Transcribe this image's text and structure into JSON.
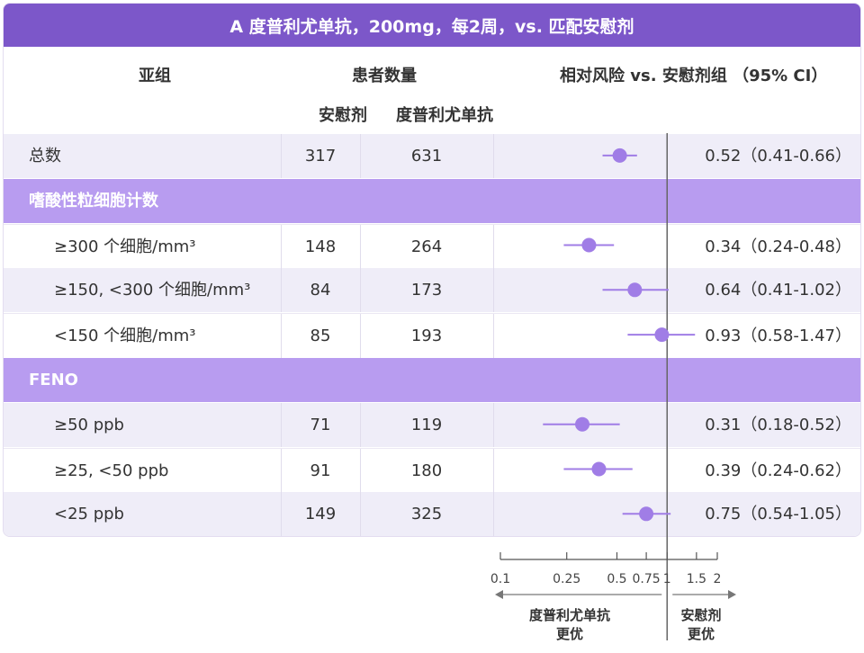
{
  "title": "A 度普利尤单抗，200mg，每2周，vs. 匹配安慰剂",
  "headers": {
    "subgroup": "亚组",
    "patient_count": "患者数量",
    "placebo": "安慰剂",
    "dupilumab": "度普利尤单抗",
    "relative_risk": "相对风险 vs. 安慰剂组 （95% CI）"
  },
  "colors": {
    "title_bg": "#7c57c9",
    "category_bg": "#b89cf0",
    "row_alt_bg": "#efedf8",
    "marker": "#a07de6",
    "axis": "#555555"
  },
  "rows": [
    {
      "kind": "data",
      "label": "总数",
      "indent": 0,
      "placebo": "317",
      "dupilumab": "631",
      "ci_text": "0.52（0.41-0.66）"
    },
    {
      "kind": "category",
      "label": "嗜酸性粒细胞计数"
    },
    {
      "kind": "data",
      "label": "≥300 个细胞/mm³",
      "indent": 1,
      "placebo": "148",
      "dupilumab": "264",
      "ci_text": "0.34（0.24-0.48）"
    },
    {
      "kind": "data",
      "label": "≥150, <300 个细胞/mm³",
      "indent": 1,
      "placebo": "84",
      "dupilumab": "173",
      "ci_text": "0.64（0.41-1.02）"
    },
    {
      "kind": "data",
      "label": "<150 个细胞/mm³",
      "indent": 1,
      "placebo": "85",
      "dupilumab": "193",
      "ci_text": "0.93（0.58-1.47）"
    },
    {
      "kind": "category",
      "label": "FENO"
    },
    {
      "kind": "data",
      "label": "≥50 ppb",
      "indent": 1,
      "placebo": "71",
      "dupilumab": "119",
      "ci_text": "0.31（0.18-0.52）"
    },
    {
      "kind": "data",
      "label": "≥25, <50 ppb",
      "indent": 1,
      "placebo": "91",
      "dupilumab": "180",
      "ci_text": "0.39（0.24-0.62）"
    },
    {
      "kind": "data",
      "label": "<25 ppb",
      "indent": 1,
      "placebo": "149",
      "dupilumab": "325",
      "ci_text": "0.75（0.54-1.05）"
    }
  ],
  "chart_data": {
    "type": "scatter",
    "x_scale": "log",
    "xlim": [
      0.1,
      2
    ],
    "reference_line": 1,
    "x_ticks": [
      0.1,
      0.25,
      0.5,
      0.75,
      1,
      1.5,
      2
    ],
    "x_tick_labels": [
      "0.1",
      "0.25",
      "0.5",
      "0.75",
      "1",
      "1.5",
      "2"
    ],
    "left_arrow_label": [
      "度普利尤单抗",
      "更优"
    ],
    "right_arrow_label": [
      "安慰剂",
      "更优"
    ],
    "points": [
      {
        "row": 0,
        "estimate": 0.52,
        "low": 0.41,
        "high": 0.66
      },
      {
        "row": 2,
        "estimate": 0.34,
        "low": 0.24,
        "high": 0.48
      },
      {
        "row": 3,
        "estimate": 0.64,
        "low": 0.41,
        "high": 1.02
      },
      {
        "row": 4,
        "estimate": 0.93,
        "low": 0.58,
        "high": 1.47
      },
      {
        "row": 6,
        "estimate": 0.31,
        "low": 0.18,
        "high": 0.52
      },
      {
        "row": 7,
        "estimate": 0.39,
        "low": 0.24,
        "high": 0.62
      },
      {
        "row": 8,
        "estimate": 0.75,
        "low": 0.54,
        "high": 1.05
      }
    ]
  }
}
